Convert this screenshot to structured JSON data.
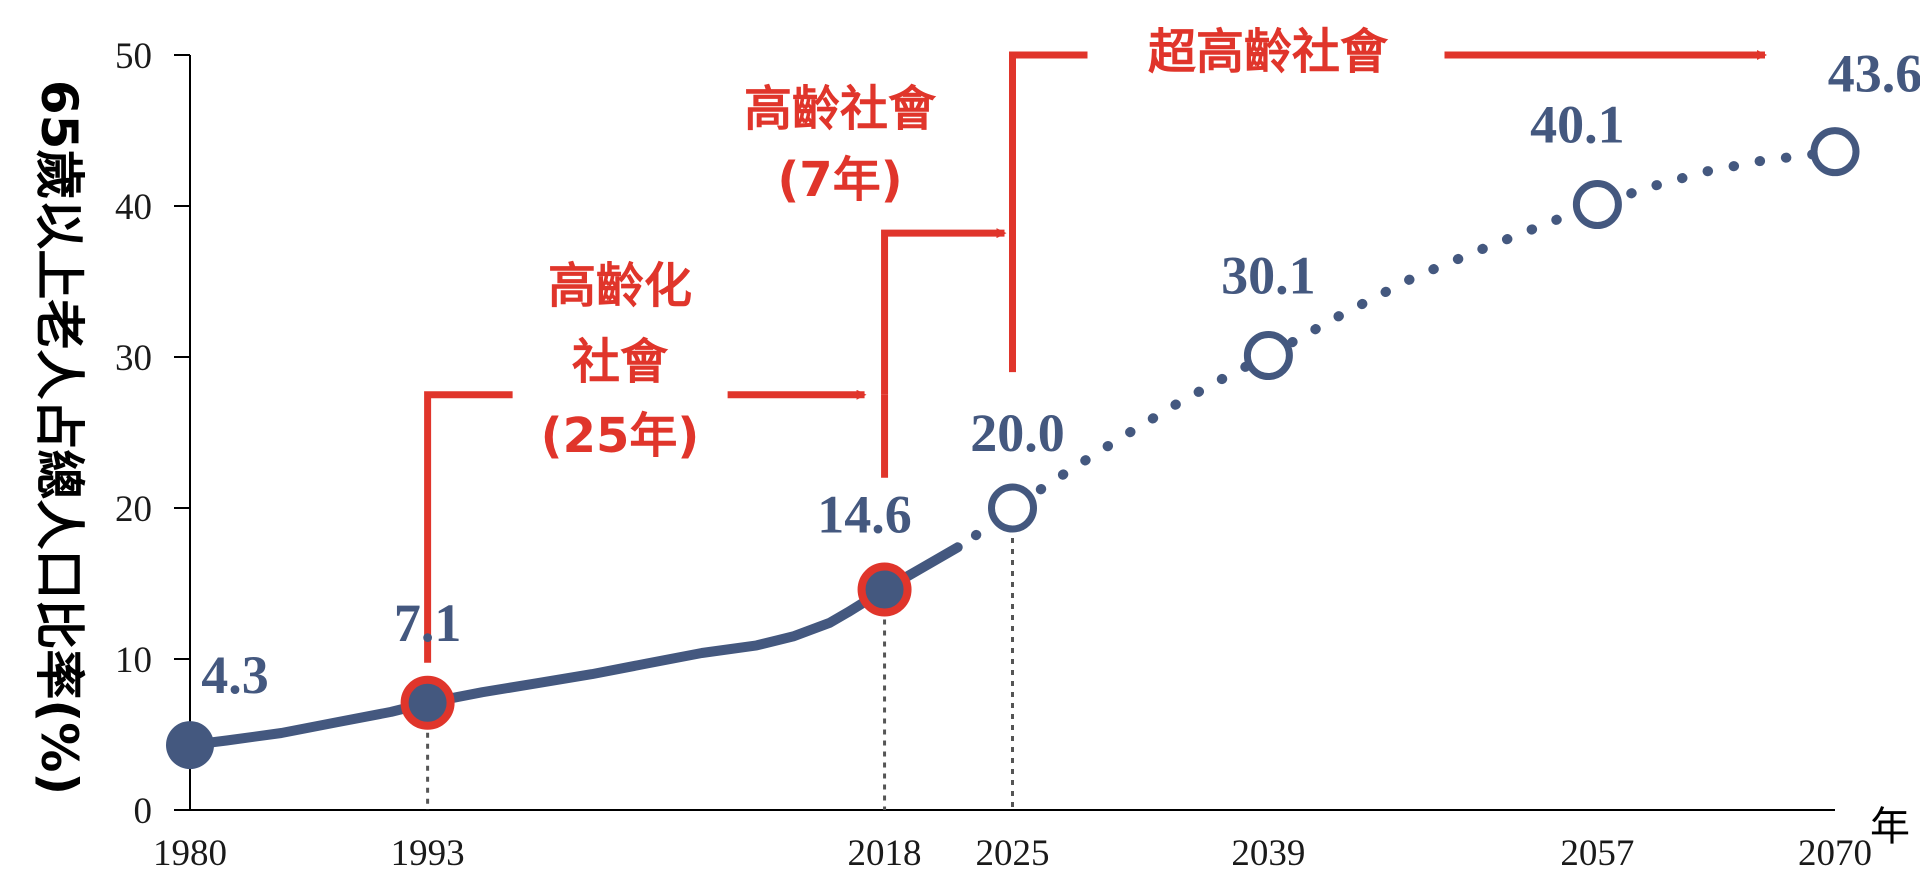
{
  "chart_data": {
    "type": "line",
    "xlabel": "年",
    "ylabel": "65歲以上老人占總人口比率(%)",
    "ylim": [
      0,
      50
    ],
    "xlim": [
      1980,
      2070
    ],
    "yticks": [
      "0",
      "10",
      "20",
      "30",
      "40",
      "50"
    ],
    "xticks": [
      "1980",
      "1993",
      "2018",
      "2025",
      "2039",
      "2057",
      "2070"
    ],
    "series": [
      {
        "style": "solid",
        "color": "#44587f",
        "points": [
          [
            1980,
            4.3
          ],
          [
            1982,
            4.6
          ],
          [
            1985,
            5.1
          ],
          [
            1988,
            5.8
          ],
          [
            1991,
            6.5
          ],
          [
            1993,
            7.1
          ],
          [
            1996,
            7.8
          ],
          [
            1999,
            8.4
          ],
          [
            2002,
            9.0
          ],
          [
            2005,
            9.7
          ],
          [
            2008,
            10.4
          ],
          [
            2011,
            10.9
          ],
          [
            2013,
            11.5
          ],
          [
            2015,
            12.4
          ],
          [
            2016,
            13.1
          ],
          [
            2018,
            14.6
          ],
          [
            2020,
            16.0
          ],
          [
            2022,
            17.4
          ]
        ]
      },
      {
        "style": "dotted",
        "color": "#44587f",
        "points": [
          [
            2023,
            18.2
          ],
          [
            2025,
            20.0
          ],
          [
            2028,
            22.4
          ],
          [
            2031,
            24.7
          ],
          [
            2034,
            26.9
          ],
          [
            2037,
            28.9
          ],
          [
            2039,
            30.1
          ],
          [
            2043,
            32.8
          ],
          [
            2047,
            35.3
          ],
          [
            2051,
            37.3
          ],
          [
            2055,
            39.2
          ],
          [
            2057,
            40.1
          ],
          [
            2060,
            41.3
          ],
          [
            2063,
            42.3
          ],
          [
            2066,
            43.0
          ],
          [
            2070,
            43.6
          ]
        ]
      }
    ],
    "markers": [
      {
        "x": 1980,
        "y": 4.3,
        "label": "4.3",
        "style": "filled"
      },
      {
        "x": 1993,
        "y": 7.1,
        "label": "7.1",
        "style": "filled-red-ring"
      },
      {
        "x": 2018,
        "y": 14.6,
        "label": "14.6",
        "style": "filled-red-ring"
      },
      {
        "x": 2025,
        "y": 20.0,
        "label": "20.0",
        "style": "hollow"
      },
      {
        "x": 2039,
        "y": 30.1,
        "label": "30.1",
        "style": "hollow"
      },
      {
        "x": 2057,
        "y": 40.1,
        "label": "40.1",
        "style": "hollow"
      },
      {
        "x": 2070,
        "y": 43.6,
        "label": "43.6",
        "style": "hollow"
      }
    ],
    "phases": [
      {
        "lines": [
          "高齡化",
          "社會",
          "(25年)"
        ],
        "from": 1993,
        "to": 2018
      },
      {
        "lines": [
          "高齡社會",
          "(7年)"
        ],
        "from": 2018,
        "to": 2025
      },
      {
        "lines": [
          "超高齡社會"
        ],
        "from": 2025,
        "to": 2070
      }
    ],
    "colors": {
      "series": "#44587f",
      "accent": "#e0352b",
      "axis": "#000000"
    }
  }
}
